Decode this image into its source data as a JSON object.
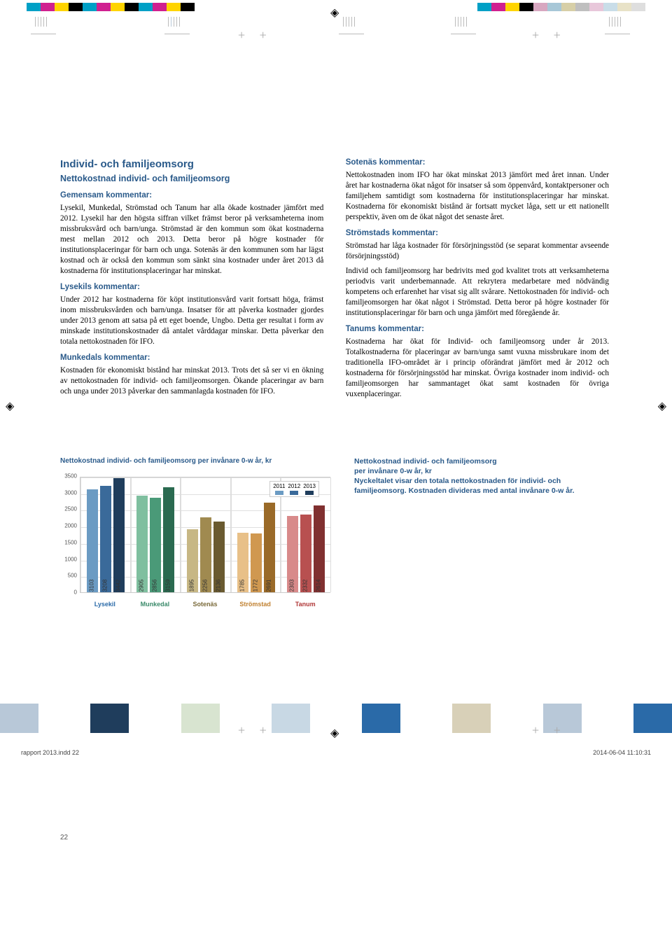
{
  "print_marks": {
    "cmyk_left_colors": [
      "#00a0c6",
      "#d02090",
      "#ffd400",
      "#000000",
      "#00a0c6",
      "#d02090",
      "#ffd400",
      "#000000",
      "#00a0c6",
      "#d02090",
      "#ffd400",
      "#000000"
    ],
    "cmyk_right_colors": [
      "#00a0c6",
      "#d02090",
      "#ffd400",
      "#000000",
      "#d7a7c0",
      "#a7c7d7",
      "#d7cfa7",
      "#bfbfbf",
      "#e8c7da",
      "#c9dde8",
      "#e8e2c7",
      "#dedede"
    ],
    "footer_left": "rapport 2013.indd   22",
    "footer_right": "2014-06-04   11:10:31"
  },
  "page_number": "22",
  "left_column": {
    "main_heading": "Individ- och familjeomsorg",
    "sub_heading": "Nettokostnad individ- och familjeomsorg",
    "gemensam_label": "Gemensam kommentar:",
    "gemensam_text": "Lysekil, Munkedal, Strömstad och Tanum har alla ökade kost­nader jämfört med 2012. Lysekil har den högsta siffran vilket främst beror på verksamheterna inom missbruksvård och barn/unga. Strömstad är den kommun som ökat kostnaderna mest mellan 2012 och 2013. Detta beror på högre kostnader för institutionsplaceringar för barn och unga. Sotenäs är den kommunen som har lägst kostnad och är också den kommun som sänkt sina kostnader under året 2013 då kostnaderna för institutionsplaceringar har minskat.",
    "lysekil_label": "Lysekils kommentar:",
    "lysekil_text": "Under 2012 har kostnaderna för köpt institutionsvård varit fortsatt höga, främst inom missbruksvården och barn/unga. Insatser för att påverka kostnader gjordes under 2013 genom att satsa på ett eget boende, Ungbo. Detta ger resultat i form av minskade institutionskostnader då antalet vårddagar minskar. Detta påverkar den totala nettokostnaden för IFO.",
    "munkedal_label": "Munkedals kommentar:",
    "munkedal_text": "Kostnaden för ekonomiskt bistånd har minskat 2013. Trots det så ser vi en ökning av nettokostnaden för individ- och familjeomsorgen. Ökande placeringar av barn och unga under 2013 påverkar den sammanlagda kostnaden för IFO."
  },
  "right_column": {
    "sotenas_label": "Sotenäs kommentar:",
    "sotenas_text": "Nettokostnaden inom IFO har ökat minskat 2013 jämfört med året innan. Under året har kostnaderna ökat något för insatser så som öppenvård, kontaktpersoner och familjehem samtidigt som kostnaderna för institutionsplaceringar har minskat. Kost­naderna för ekonomiskt bistånd är fortsatt mycket låga, sett ur ett nationellt perspektiv, även om de ökat något det senaste året.",
    "stromstad_label": "Strömstads kommentar:",
    "stromstad_text1": "Strömstad har låga kostnader för försörjningsstöd (se separat kommentar avseende försörjningsstöd)",
    "stromstad_text2": "Individ och familjeomsorg har bedrivits med god kvalitet trots att verksamheterna periodvis varit underbemannade. Att re­krytera medarbetare med nödvändig kompetens och erfaren­het har visat sig allt svårare. Nettokostnaden för individ- och familjeomsorgen har ökat något i Strömstad. Detta beror på högre kostnader för institutionsplaceringar för barn och unga jämfört med föregående år.",
    "tanum_label": "Tanums kommentar:",
    "tanum_text": "Kostnaderna har ökat för Individ- och familjeomsorg under år 2013. Totalkostnaderna för placeringar av barn/unga samt vuxna missbrukare inom det traditionella IFO-området är i princip oförändrat jämfört med år 2012 och kostnaderna för försörjningsstöd har minskat. Övriga kostnader inom individ- och familjeomsorgen har sammantaget ökat samt kostnaden för övriga vuxenplaceringar."
  },
  "chart": {
    "title": "Nettokostnad individ- och familjeomsorg per invånare 0-w år, kr",
    "ymax": 3500,
    "ytick_step": 500,
    "yticks": [
      "0",
      "500",
      "1000",
      "1500",
      "2000",
      "2500",
      "3000",
      "3500"
    ],
    "legend_years": [
      "2011",
      "2012",
      "2013"
    ],
    "legend_colors": [
      "#6b9bc3",
      "#3a6a9a",
      "#1f3d5c"
    ],
    "groups": [
      {
        "label": "Lysekil",
        "label_color": "#2a6aa8",
        "colors": [
          "#6b9bc3",
          "#3a6a9a",
          "#1f3d5c"
        ],
        "values": [
          3103,
          3208,
          3442
        ]
      },
      {
        "label": "Munkedal",
        "label_color": "#3a8a6a",
        "colors": [
          "#7fbf9f",
          "#4a9a78",
          "#2a6a50"
        ],
        "values": [
          2905,
          2856,
          3159
        ]
      },
      {
        "label": "Sotenäs",
        "label_color": "#7a6a3a",
        "colors": [
          "#c7b784",
          "#a08a50",
          "#6a5a30"
        ],
        "values": [
          1895,
          2256,
          2136
        ]
      },
      {
        "label": "Strömstad",
        "label_color": "#c08030",
        "colors": [
          "#e8c088",
          "#d09850",
          "#9a6a28"
        ],
        "values": [
          1785,
          1772,
          2691
        ]
      },
      {
        "label": "Tanum",
        "label_color": "#b03838",
        "colors": [
          "#d88a8a",
          "#b85050",
          "#803030"
        ],
        "values": [
          2303,
          2332,
          2614
        ]
      }
    ]
  },
  "chart_desc": {
    "line1": "Nettokostnad individ- och familjeomsorg",
    "line2": "per invånare 0-w år, kr",
    "body": "Nyckeltalet visar den totala nettokostnaden för individ- och familjeomsorg. Kostnaden divideras med antal invånare 0-w år."
  },
  "bottom_squares_colors": [
    "#b8c8d8",
    "#1f3d5c",
    "#d8e4d0",
    "#c8d8e4",
    "#2a6aa8",
    "#d8d0b8",
    "#b8c8d8",
    "#2a6aa8"
  ]
}
